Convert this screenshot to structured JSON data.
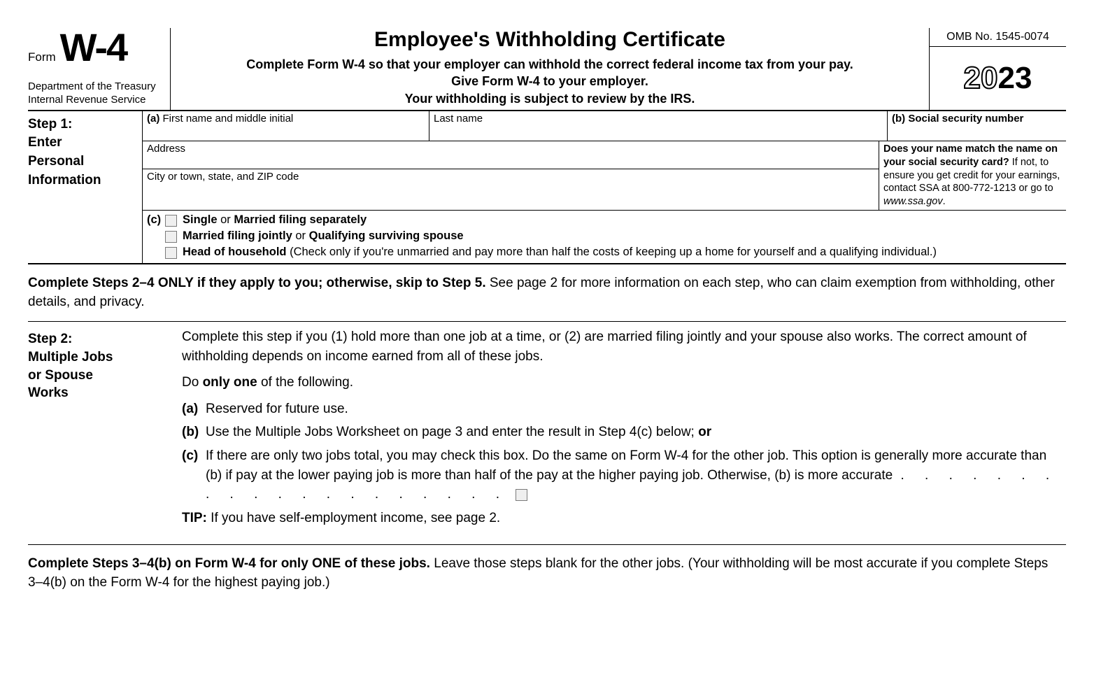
{
  "header": {
    "form_word": "Form",
    "form_number": "W-4",
    "agency1": "Department of the Treasury",
    "agency2": "Internal Revenue Service",
    "title": "Employee's Withholding Certificate",
    "subtitle1": "Complete Form W-4 so that your employer can withhold the correct federal income tax from your pay.",
    "subtitle2": "Give Form W-4 to your employer.",
    "subtitle3": "Your withholding is subject to review by the IRS.",
    "omb": "OMB No. 1545-0074",
    "year_outline": "20",
    "year_solid": "23"
  },
  "step1": {
    "label_line1": "Step 1:",
    "label_line2": "Enter",
    "label_line3": "Personal",
    "label_line4": "Information",
    "a_marker": "(a)",
    "first_name_label": "First name and middle initial",
    "last_name_label": "Last name",
    "b_marker": "(b)",
    "ssn_label": "Social security number",
    "address_label": "Address",
    "city_label": "City or town, state, and ZIP code",
    "name_match_bold1": "Does your name match the name on your social security card?",
    "name_match_rest": " If not, to ensure you get credit for your earnings, contact SSA at 800-772-1213 or go to ",
    "name_match_url": "www.ssa.gov",
    "name_match_period": ".",
    "c_marker": "(c)",
    "filing1_a": "Single",
    "filing1_or": " or ",
    "filing1_b": "Married filing separately",
    "filing2_a": "Married filing jointly",
    "filing2_or": " or ",
    "filing2_b": "Qualifying surviving spouse",
    "filing3_a": "Head of household",
    "filing3_rest": " (Check only if you're unmarried and pay more than half the costs of keeping up a home for yourself and a qualifying individual.)"
  },
  "mid_instruction": {
    "bold": "Complete Steps 2–4 ONLY if they apply to you; otherwise, skip to Step 5.",
    "rest": " See page 2 for more information on each step, who can claim exemption from withholding, other details, and privacy."
  },
  "step2": {
    "label_line1": "Step 2:",
    "label_line2": "Multiple Jobs",
    "label_line3": "or Spouse",
    "label_line4": "Works",
    "intro": "Complete this step if you (1) hold more than one job at a time, or (2) are married filing jointly and your spouse also works. The correct amount of withholding depends on income earned from all of these jobs.",
    "do_one_pre": "Do ",
    "do_one_bold": "only one",
    "do_one_post": " of the following.",
    "a_marker": "(a)",
    "a_text": "Reserved for future use.",
    "b_marker": "(b)",
    "b_text_pre": "Use the Multiple Jobs Worksheet on page 3 and enter the result in Step 4(c) below; ",
    "b_text_bold": "or",
    "c_marker": "(c)",
    "c_text": "If there are only two jobs total, you may check this box. Do the same on Form W-4 for the other job. This option is generally more accurate than (b) if pay at the lower paying job is more than half of the pay at the higher paying job. Otherwise, (b) is more accurate",
    "dots": ". . . . . . . . . . . . . . . . . . . .",
    "tip_label": "TIP:",
    "tip_text": " If you have self-employment income, see page 2."
  },
  "bottom_instruction": {
    "bold": "Complete Steps 3–4(b) on Form W-4 for only ONE of these jobs.",
    "rest": " Leave those steps blank for the other jobs. (Your withholding will be most accurate if you complete Steps 3–4(b) on the Form W-4 for the highest paying job.)"
  }
}
